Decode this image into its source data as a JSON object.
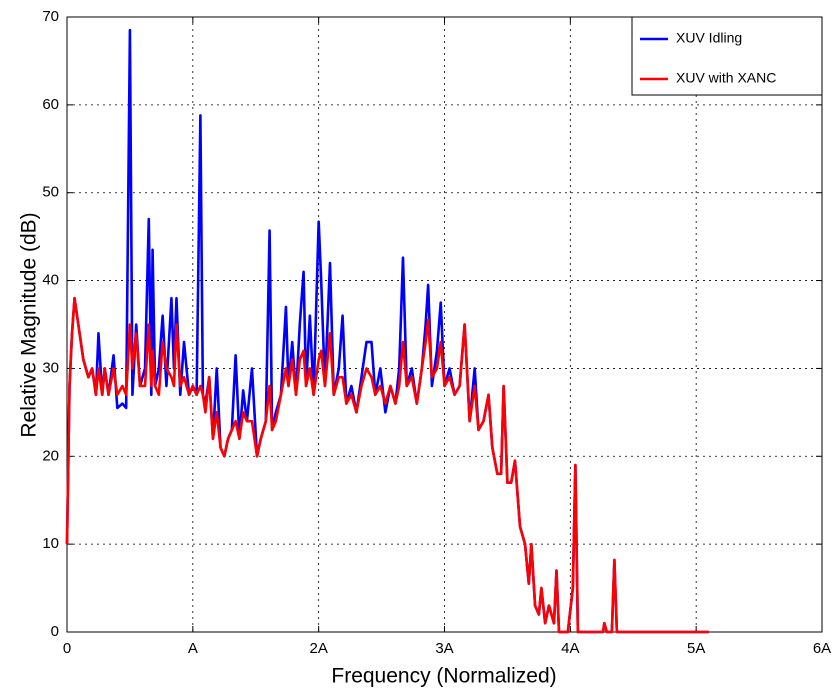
{
  "chart_data": {
    "type": "line",
    "xlabel": "Frequency (Normalized)",
    "ylabel": "Relative Magnitude (dB)",
    "xlim": [
      0,
      6
    ],
    "ylim": [
      0,
      70
    ],
    "xticks": [
      0,
      {
        "value": 1,
        "label": "A"
      },
      {
        "value": 2,
        "label": "2A"
      },
      {
        "value": 3,
        "label": "3A"
      },
      {
        "value": 4,
        "label": "4A"
      },
      {
        "value": 5,
        "label": "5A"
      },
      {
        "value": 6,
        "label": "6A"
      }
    ],
    "yticks": [
      0,
      10,
      20,
      30,
      40,
      50,
      60,
      70
    ],
    "grid": true,
    "legend": "top-right",
    "x": [
      0,
      0.02,
      0.04,
      0.06,
      0.09,
      0.13,
      0.17,
      0.2,
      0.23,
      0.25,
      0.28,
      0.3,
      0.33,
      0.37,
      0.4,
      0.44,
      0.47,
      0.5,
      0.52,
      0.55,
      0.58,
      0.62,
      0.65,
      0.67,
      0.68,
      0.7,
      0.73,
      0.76,
      0.79,
      0.83,
      0.85,
      0.87,
      0.9,
      0.93,
      0.97,
      1.0,
      1.03,
      1.06,
      1.08,
      1.1,
      1.13,
      1.16,
      1.19,
      1.22,
      1.25,
      1.28,
      1.31,
      1.34,
      1.37,
      1.4,
      1.43,
      1.47,
      1.51,
      1.54,
      1.58,
      1.61,
      1.63,
      1.66,
      1.7,
      1.74,
      1.76,
      1.79,
      1.82,
      1.85,
      1.88,
      1.9,
      1.93,
      1.96,
      2.0,
      2.02,
      2.05,
      2.09,
      2.12,
      2.16,
      2.19,
      2.22,
      2.26,
      2.3,
      2.34,
      2.38,
      2.42,
      2.45,
      2.49,
      2.53,
      2.57,
      2.61,
      2.64,
      2.67,
      2.7,
      2.74,
      2.78,
      2.82,
      2.85,
      2.87,
      2.9,
      2.94,
      2.97,
      3.0,
      3.04,
      3.08,
      3.12,
      3.16,
      3.2,
      3.24,
      3.27,
      3.31,
      3.35,
      3.38,
      3.42,
      3.45,
      3.47,
      3.5,
      3.53,
      3.56,
      3.6,
      3.64,
      3.67,
      3.69,
      3.72,
      3.75,
      3.77,
      3.8,
      3.83,
      3.87,
      3.89,
      3.91,
      3.98,
      4.02,
      4.04,
      4.06,
      4.26,
      4.27,
      4.29,
      4.33,
      4.35,
      4.37,
      5.1
    ],
    "series": [
      {
        "name": "XUV Idling",
        "color": "#0000ff",
        "values": [
          10,
          28,
          34,
          38,
          35,
          31,
          29,
          30,
          27,
          34,
          27,
          30,
          27,
          31.5,
          25.5,
          26,
          25.5,
          68.5,
          27,
          35,
          28,
          30,
          47,
          27,
          43.5,
          28,
          30,
          36,
          28,
          38,
          30,
          38,
          27,
          33,
          27,
          28,
          27,
          58.8,
          27,
          26,
          29,
          22,
          30,
          21,
          20,
          22,
          23,
          31.5,
          22,
          27.5,
          24,
          30,
          20,
          22,
          24,
          45.7,
          23,
          25,
          27,
          37,
          28,
          33,
          27,
          35,
          41,
          28,
          36,
          27,
          46.7,
          40,
          28,
          42,
          27,
          30,
          36,
          26,
          28,
          25,
          29,
          33,
          33,
          27,
          30,
          25,
          28,
          26,
          30,
          42.6,
          28,
          30,
          26,
          30,
          35,
          39.5,
          28,
          32,
          37.5,
          28,
          30,
          27,
          28,
          35,
          24,
          30,
          23,
          24,
          27,
          21,
          18,
          18,
          28,
          17,
          17,
          19.5,
          12,
          10,
          5.5,
          10,
          3,
          2,
          5,
          1,
          3,
          1,
          7,
          0,
          0,
          5,
          19,
          0,
          0,
          1,
          0,
          0,
          8.2,
          0,
          0
        ]
      },
      {
        "name": "XUV with XANC",
        "color": "#ff0000",
        "values": [
          10,
          28,
          34,
          38,
          35,
          31,
          29,
          30,
          27,
          30,
          27,
          30,
          27,
          30,
          27,
          28,
          27,
          35,
          30,
          34,
          28,
          28,
          35,
          28,
          32,
          28,
          27,
          33,
          30,
          29,
          28,
          35,
          28,
          29,
          27,
          28,
          27,
          28,
          27,
          25,
          29,
          22,
          25,
          21,
          20,
          22,
          23,
          24,
          22,
          25,
          24,
          24,
          20,
          22,
          24,
          28,
          23,
          24,
          27,
          30,
          28,
          31,
          27,
          31,
          32,
          28,
          30,
          27,
          31,
          32,
          28,
          34,
          27,
          29,
          29,
          26,
          27,
          25,
          28,
          30,
          29,
          27,
          28,
          26,
          28,
          26,
          28,
          33,
          28,
          29,
          26,
          30,
          33,
          35.5,
          29,
          30,
          33,
          28,
          29,
          27,
          28,
          35,
          24,
          28,
          23,
          24,
          27,
          21,
          18,
          18,
          28,
          17,
          17,
          19.5,
          12,
          10,
          5.5,
          10,
          3,
          2,
          5,
          1,
          3,
          1,
          7,
          0,
          0,
          5,
          19,
          0,
          0,
          1,
          0,
          0,
          8.2,
          0,
          0
        ]
      }
    ]
  }
}
